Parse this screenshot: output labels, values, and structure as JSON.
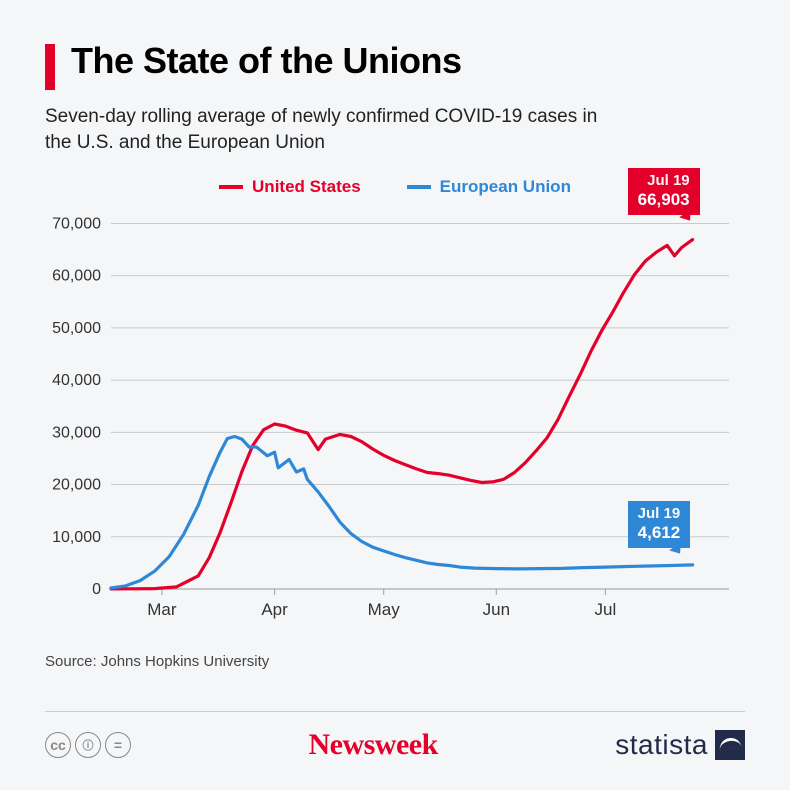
{
  "title": "The State of the Unions",
  "subtitle": "Seven-day rolling average of newly confirmed COVID-19 cases in the U.S. and the European Union",
  "source": "Source: Johns Hopkins University",
  "attribution": {
    "left_icons": [
      "cc",
      "by",
      "nd"
    ],
    "center": "Newsweek",
    "right": "statista"
  },
  "chart": {
    "type": "line",
    "background_color": "#f5f6f8",
    "grid_color": "#c8cacd",
    "axis_color": "#a9abb0",
    "ylim": [
      0,
      72000
    ],
    "yticks": [
      0,
      10000,
      20000,
      30000,
      40000,
      50000,
      60000,
      70000
    ],
    "ytick_labels": [
      "0",
      "10,000",
      "20,000",
      "30,000",
      "40,000",
      "50,000",
      "60,000",
      "70,000"
    ],
    "x_range_days": [
      0,
      170
    ],
    "xticks": [
      14,
      45,
      75,
      106,
      136
    ],
    "xtick_labels": [
      "Mar",
      "Apr",
      "May",
      "Jun",
      "Jul"
    ],
    "line_width": 3.2,
    "title_fontsize": 36,
    "label_fontsize": 16,
    "legend": {
      "position": "top-center",
      "items": [
        {
          "label": "United States",
          "color": "#e4002b"
        },
        {
          "label": "European Union",
          "color": "#2f88d6"
        }
      ]
    },
    "series": [
      {
        "name": "United States",
        "color": "#e4002b",
        "points": [
          [
            0,
            10
          ],
          [
            6,
            30
          ],
          [
            12,
            80
          ],
          [
            18,
            400
          ],
          [
            24,
            2500
          ],
          [
            27,
            6000
          ],
          [
            30,
            10800
          ],
          [
            33,
            16500
          ],
          [
            36,
            22500
          ],
          [
            39,
            27500
          ],
          [
            42,
            30500
          ],
          [
            45,
            31600
          ],
          [
            48,
            31200
          ],
          [
            51,
            30400
          ],
          [
            54,
            29900
          ],
          [
            57,
            26700
          ],
          [
            59,
            28700
          ],
          [
            63,
            29600
          ],
          [
            66,
            29200
          ],
          [
            69,
            28200
          ],
          [
            72,
            26800
          ],
          [
            75,
            25600
          ],
          [
            78,
            24600
          ],
          [
            81,
            23800
          ],
          [
            84,
            23000
          ],
          [
            87,
            22300
          ],
          [
            90,
            22100
          ],
          [
            93,
            21800
          ],
          [
            96,
            21300
          ],
          [
            99,
            20800
          ],
          [
            102,
            20400
          ],
          [
            105,
            20500
          ],
          [
            108,
            21000
          ],
          [
            111,
            22300
          ],
          [
            114,
            24200
          ],
          [
            117,
            26500
          ],
          [
            120,
            29000
          ],
          [
            123,
            32500
          ],
          [
            126,
            36800
          ],
          [
            129,
            41000
          ],
          [
            132,
            45500
          ],
          [
            135,
            49500
          ],
          [
            138,
            53000
          ],
          [
            141,
            56800
          ],
          [
            144,
            60200
          ],
          [
            147,
            62800
          ],
          [
            150,
            64500
          ],
          [
            153,
            65800
          ],
          [
            155,
            63800
          ],
          [
            157,
            65400
          ],
          [
            160,
            66903
          ]
        ],
        "callout": {
          "date": "Jul 19",
          "value": "66,903",
          "bg": "#e4002b"
        }
      },
      {
        "name": "European Union",
        "color": "#2f88d6",
        "points": [
          [
            0,
            200
          ],
          [
            4,
            600
          ],
          [
            8,
            1600
          ],
          [
            12,
            3400
          ],
          [
            16,
            6200
          ],
          [
            20,
            10500
          ],
          [
            24,
            16000
          ],
          [
            27,
            21500
          ],
          [
            30,
            26200
          ],
          [
            32,
            28800
          ],
          [
            34,
            29200
          ],
          [
            36,
            28700
          ],
          [
            38,
            27200
          ],
          [
            40,
            27200
          ],
          [
            43,
            25500
          ],
          [
            45,
            26200
          ],
          [
            46,
            23200
          ],
          [
            49,
            24800
          ],
          [
            51,
            22400
          ],
          [
            53,
            23000
          ],
          [
            54,
            21000
          ],
          [
            57,
            18600
          ],
          [
            60,
            15800
          ],
          [
            63,
            12800
          ],
          [
            66,
            10600
          ],
          [
            69,
            9100
          ],
          [
            72,
            8000
          ],
          [
            75,
            7300
          ],
          [
            78,
            6600
          ],
          [
            81,
            6000
          ],
          [
            84,
            5500
          ],
          [
            87,
            5000
          ],
          [
            90,
            4700
          ],
          [
            93,
            4500
          ],
          [
            96,
            4200
          ],
          [
            100,
            4000
          ],
          [
            106,
            3900
          ],
          [
            112,
            3850
          ],
          [
            118,
            3900
          ],
          [
            124,
            3950
          ],
          [
            130,
            4100
          ],
          [
            136,
            4200
          ],
          [
            142,
            4300
          ],
          [
            148,
            4400
          ],
          [
            154,
            4500
          ],
          [
            160,
            4612
          ]
        ],
        "callout": {
          "date": "Jul 19",
          "value": "4,612",
          "bg": "#2f88d6"
        }
      }
    ]
  }
}
